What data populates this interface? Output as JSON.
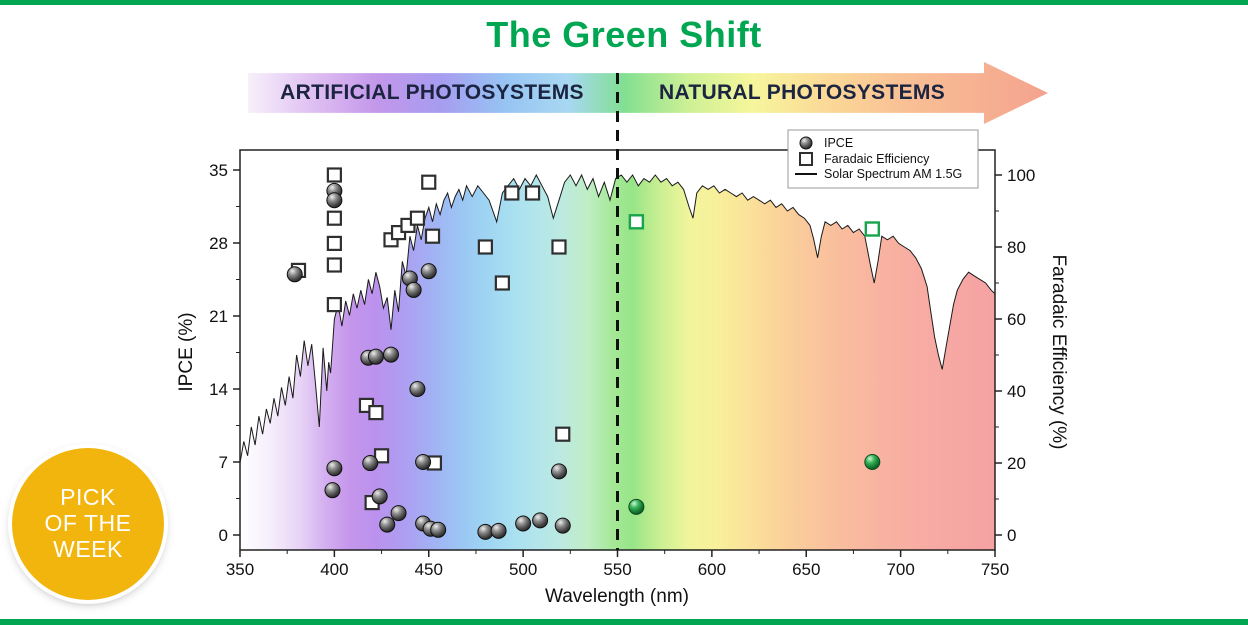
{
  "page": {
    "title": "The Green Shift",
    "title_color": "#00a651",
    "frame_color": "#00a651",
    "background": "#ffffff"
  },
  "banner": {
    "left_label": "ARTIFICIAL PHOTOSYSTEMS",
    "right_label": "NATURAL PHOTOSYSTEMS",
    "text_color": "#1b2440",
    "gradient": [
      "#f7f0fb",
      "#e0c0f2",
      "#c397ea",
      "#a79cf0",
      "#97c3f3",
      "#a8d8f2",
      "#82df92",
      "#cdf094",
      "#f6f69c",
      "#fbda97",
      "#f9c095",
      "#f4a38e"
    ]
  },
  "badge": {
    "lines": [
      "PICK",
      "OF THE",
      "WEEK"
    ],
    "bg_color": "#f2b50e",
    "text_color": "#ffffff"
  },
  "chart_data": {
    "type": "scatter",
    "title": "The Green Shift",
    "xlabel": "Wavelength (nm)",
    "ylabel_left": "IPCE (%)",
    "ylabel_right": "Faradaic Efficiency (%)",
    "xlim": [
      350,
      750
    ],
    "ylim_left": [
      0,
      35
    ],
    "ylim_right": [
      0,
      100
    ],
    "x_ticks": [
      350,
      400,
      450,
      500,
      550,
      600,
      650,
      700,
      750
    ],
    "y_ticks_left": [
      0,
      7,
      14,
      21,
      28,
      35
    ],
    "y_ticks_right": [
      0,
      20,
      40,
      60,
      80,
      100
    ],
    "divider_wavelength_nm": 550,
    "grid": false,
    "legend": {
      "position": "top-right",
      "entries": [
        "IPCE",
        "Faradaic Efficiency",
        "Solar Spectrum AM 1.5G"
      ]
    },
    "marker_colors": {
      "ipce_gray": [
        "#ededed",
        "#8f8f8f",
        "#4a4a4a",
        "#1d1d1d"
      ],
      "ipce_green": [
        "#d2f5d8",
        "#3cb65c",
        "#157a34",
        "#0a4d1f"
      ],
      "fe_square_stroke": "#2f2f2f",
      "fe_square_green_stroke": "#17a44b",
      "fe_square_fill": "#ffffff"
    },
    "series": [
      {
        "name": "IPCE",
        "axis": "left",
        "marker": "sphere",
        "units": "%",
        "points": [
          [
            379,
            25.0
          ],
          [
            400,
            33.0
          ],
          [
            400,
            32.1
          ],
          [
            400,
            6.4
          ],
          [
            399,
            4.3
          ],
          [
            418,
            17.0
          ],
          [
            422,
            17.1
          ],
          [
            419,
            6.9
          ],
          [
            424,
            3.7
          ],
          [
            430,
            17.3
          ],
          [
            428,
            1.0
          ],
          [
            434,
            2.1
          ],
          [
            440,
            24.6
          ],
          [
            442,
            23.5
          ],
          [
            444,
            14.0
          ],
          [
            450,
            25.3
          ],
          [
            447,
            7.0
          ],
          [
            447,
            1.1
          ],
          [
            451,
            0.6
          ],
          [
            455,
            0.5
          ],
          [
            480,
            0.3
          ],
          [
            487,
            0.4
          ],
          [
            500,
            1.1
          ],
          [
            509,
            1.4
          ],
          [
            519,
            6.1
          ],
          [
            521,
            0.9
          ]
        ],
        "green_points": [
          [
            560,
            2.7
          ],
          [
            685,
            7.0
          ]
        ]
      },
      {
        "name": "Faradaic Efficiency",
        "axis": "right",
        "marker": "open-square",
        "units": "%",
        "points": [
          [
            381,
            73.5
          ],
          [
            400,
            100
          ],
          [
            400,
            88
          ],
          [
            400,
            81
          ],
          [
            400,
            75
          ],
          [
            400,
            64
          ],
          [
            417,
            36
          ],
          [
            422,
            34
          ],
          [
            420,
            9
          ],
          [
            425,
            22
          ],
          [
            430,
            82
          ],
          [
            434,
            84
          ],
          [
            439,
            86
          ],
          [
            444,
            88
          ],
          [
            450,
            98
          ],
          [
            452,
            83
          ],
          [
            453,
            20
          ],
          [
            480,
            80
          ],
          [
            489,
            70
          ],
          [
            494,
            95
          ],
          [
            505,
            95
          ],
          [
            519,
            80
          ],
          [
            521,
            28
          ]
        ],
        "green_points": [
          [
            560,
            87
          ],
          [
            685,
            85
          ]
        ]
      },
      {
        "name": "Solar Spectrum AM 1.5G",
        "axis": "right",
        "type": "line-area",
        "points": [
          [
            350,
            20
          ],
          [
            352,
            26
          ],
          [
            354,
            22
          ],
          [
            356,
            30
          ],
          [
            358,
            25
          ],
          [
            360,
            33
          ],
          [
            362,
            28
          ],
          [
            364,
            35
          ],
          [
            366,
            31
          ],
          [
            368,
            38
          ],
          [
            370,
            33
          ],
          [
            372,
            41
          ],
          [
            374,
            36
          ],
          [
            376,
            44
          ],
          [
            378,
            38
          ],
          [
            380,
            50
          ],
          [
            382,
            44
          ],
          [
            384,
            54
          ],
          [
            386,
            47
          ],
          [
            388,
            53
          ],
          [
            390,
            42
          ],
          [
            392,
            30
          ],
          [
            394,
            52
          ],
          [
            396,
            40
          ],
          [
            397,
            48
          ],
          [
            398,
            45
          ],
          [
            400,
            60
          ],
          [
            402,
            64
          ],
          [
            404,
            58
          ],
          [
            406,
            65
          ],
          [
            408,
            61
          ],
          [
            410,
            67
          ],
          [
            412,
            63
          ],
          [
            414,
            68
          ],
          [
            416,
            64
          ],
          [
            418,
            71
          ],
          [
            420,
            67
          ],
          [
            422,
            73
          ],
          [
            424,
            69
          ],
          [
            426,
            63
          ],
          [
            428,
            66
          ],
          [
            430,
            57
          ],
          [
            432,
            68
          ],
          [
            434,
            62
          ],
          [
            436,
            76
          ],
          [
            438,
            72
          ],
          [
            440,
            83
          ],
          [
            442,
            79
          ],
          [
            444,
            86
          ],
          [
            446,
            82
          ],
          [
            448,
            88
          ],
          [
            450,
            91
          ],
          [
            452,
            87
          ],
          [
            454,
            92
          ],
          [
            456,
            89
          ],
          [
            458,
            93
          ],
          [
            460,
            95
          ],
          [
            462,
            91
          ],
          [
            464,
            94
          ],
          [
            466,
            96
          ],
          [
            468,
            93
          ],
          [
            470,
            97
          ],
          [
            473,
            94
          ],
          [
            476,
            97
          ],
          [
            479,
            95
          ],
          [
            482,
            93
          ],
          [
            486,
            87
          ],
          [
            489,
            95
          ],
          [
            492,
            97
          ],
          [
            495,
            99
          ],
          [
            498,
            96
          ],
          [
            501,
            99
          ],
          [
            504,
            97
          ],
          [
            507,
            100
          ],
          [
            510,
            97
          ],
          [
            513,
            94
          ],
          [
            516,
            88
          ],
          [
            519,
            93
          ],
          [
            522,
            98
          ],
          [
            525,
            100
          ],
          [
            528,
            97
          ],
          [
            531,
            100
          ],
          [
            534,
            96
          ],
          [
            537,
            99
          ],
          [
            540,
            94
          ],
          [
            543,
            98
          ],
          [
            546,
            93
          ],
          [
            549,
            99
          ],
          [
            552,
            100
          ],
          [
            555,
            98
          ],
          [
            558,
            100
          ],
          [
            561,
            97
          ],
          [
            564,
            99
          ],
          [
            567,
            98
          ],
          [
            570,
            100
          ],
          [
            573,
            98
          ],
          [
            576,
            99
          ],
          [
            579,
            97
          ],
          [
            582,
            98
          ],
          [
            585,
            96
          ],
          [
            588,
            91
          ],
          [
            590,
            88
          ],
          [
            592,
            95
          ],
          [
            595,
            97
          ],
          [
            598,
            96
          ],
          [
            601,
            97
          ],
          [
            604,
            95
          ],
          [
            607,
            96
          ],
          [
            610,
            95
          ],
          [
            613,
            94
          ],
          [
            616,
            95
          ],
          [
            619,
            93
          ],
          [
            622,
            94
          ],
          [
            625,
            93
          ],
          [
            628,
            92
          ],
          [
            631,
            93
          ],
          [
            634,
            91
          ],
          [
            637,
            92
          ],
          [
            640,
            90
          ],
          [
            643,
            91
          ],
          [
            646,
            89
          ],
          [
            649,
            88
          ],
          [
            652,
            86
          ],
          [
            654,
            82
          ],
          [
            656,
            77
          ],
          [
            658,
            83
          ],
          [
            660,
            87
          ],
          [
            663,
            86
          ],
          [
            666,
            87
          ],
          [
            669,
            85
          ],
          [
            672,
            86
          ],
          [
            675,
            84
          ],
          [
            678,
            85
          ],
          [
            681,
            83
          ],
          [
            684,
            75
          ],
          [
            686,
            70
          ],
          [
            688,
            76
          ],
          [
            690,
            83
          ],
          [
            693,
            82
          ],
          [
            696,
            83
          ],
          [
            699,
            81
          ],
          [
            702,
            80
          ],
          [
            705,
            79
          ],
          [
            708,
            77
          ],
          [
            711,
            74
          ],
          [
            714,
            69
          ],
          [
            716,
            62
          ],
          [
            718,
            55
          ],
          [
            720,
            50
          ],
          [
            722,
            46
          ],
          [
            724,
            52
          ],
          [
            726,
            58
          ],
          [
            728,
            64
          ],
          [
            730,
            68
          ],
          [
            733,
            71
          ],
          [
            736,
            73
          ],
          [
            739,
            72
          ],
          [
            742,
            71
          ],
          [
            745,
            70
          ],
          [
            748,
            68
          ],
          [
            750,
            67
          ]
        ]
      }
    ],
    "spectrum_gradient": [
      [
        350,
        "#ffffff"
      ],
      [
        365,
        "#f6effc"
      ],
      [
        382,
        "#e7d3f6"
      ],
      [
        395,
        "#d4aff0"
      ],
      [
        408,
        "#c596eb"
      ],
      [
        422,
        "#bb92ee"
      ],
      [
        436,
        "#ae9df1"
      ],
      [
        450,
        "#a3aff3"
      ],
      [
        464,
        "#9cc2f4"
      ],
      [
        478,
        "#9dd2f3"
      ],
      [
        492,
        "#a7def1"
      ],
      [
        506,
        "#b2e5ec"
      ],
      [
        520,
        "#bce9e0"
      ],
      [
        534,
        "#c0eec6"
      ],
      [
        548,
        "#a4e896"
      ],
      [
        558,
        "#97e588"
      ],
      [
        572,
        "#c9ef92"
      ],
      [
        588,
        "#f1f59c"
      ],
      [
        602,
        "#f8f09b"
      ],
      [
        618,
        "#fae39a"
      ],
      [
        634,
        "#fbd49a"
      ],
      [
        652,
        "#fac79c"
      ],
      [
        672,
        "#f9bb9e"
      ],
      [
        695,
        "#f8b1a1"
      ],
      [
        720,
        "#f7a9a3"
      ],
      [
        750,
        "#f5a2a3"
      ]
    ]
  }
}
